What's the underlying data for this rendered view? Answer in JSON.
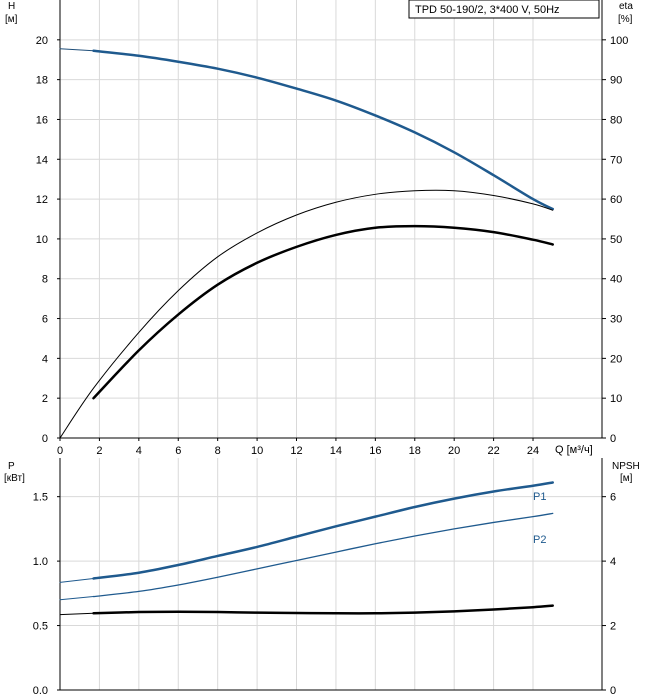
{
  "chart_data": [
    {
      "type": "line",
      "title": "TPD 50-190/2, 3*400 V, 50Hz",
      "xlabel": "Q [м³/ч]",
      "ylabel_left": "H",
      "ylabel_left_unit": "[м]",
      "ylabel_right": "eta",
      "ylabel_right_unit": "[%]",
      "xlim": [
        0,
        27.5
      ],
      "ylim_left": [
        0,
        22
      ],
      "ylim_right": [
        0,
        110
      ],
      "x_ticks": [
        0,
        2,
        4,
        6,
        8,
        10,
        12,
        14,
        16,
        18,
        20,
        22,
        24
      ],
      "y_left_ticks": [
        0,
        2,
        4,
        6,
        8,
        10,
        12,
        14,
        16,
        18,
        20
      ],
      "y_right_ticks": [
        0,
        10,
        20,
        30,
        40,
        50,
        60,
        70,
        80,
        90,
        100
      ],
      "grid": true,
      "series": [
        {
          "id": "H_ext",
          "axis": "left",
          "color": "#1f4e79",
          "width": 1,
          "x": [
            0,
            1.7
          ],
          "y": [
            19.55,
            19.45
          ]
        },
        {
          "id": "H",
          "axis": "left",
          "color": "#1f5a8e",
          "width": 2.5,
          "x": [
            1.7,
            4,
            6,
            8,
            10,
            12,
            14,
            16,
            18,
            20,
            22,
            24,
            25
          ],
          "y": [
            19.45,
            19.2,
            18.9,
            18.55,
            18.1,
            17.55,
            16.95,
            16.2,
            15.35,
            14.35,
            13.2,
            12.0,
            11.5
          ]
        },
        {
          "id": "eta_thin",
          "axis": "right",
          "color": "#000000",
          "width": 1,
          "x": [
            0,
            1.7,
            4,
            6,
            8,
            10,
            12,
            14,
            16,
            18,
            20,
            22,
            24,
            25
          ],
          "y": [
            0,
            12.5,
            26.5,
            37,
            45.5,
            51.5,
            56,
            59.2,
            61.2,
            62.1,
            62.1,
            60.9,
            58.8,
            57.2
          ]
        },
        {
          "id": "eta_thick",
          "axis": "right",
          "color": "#000000",
          "width": 2.5,
          "x": [
            1.7,
            4,
            6,
            8,
            10,
            12,
            14,
            16,
            18,
            20,
            22,
            24,
            25
          ],
          "y": [
            10,
            22,
            31,
            38.5,
            44,
            48,
            51,
            52.8,
            53.2,
            52.8,
            51.7,
            49.8,
            48.6
          ]
        }
      ]
    },
    {
      "type": "line",
      "ylabel_left": "P",
      "ylabel_left_unit": "[кВт]",
      "ylabel_right": "NPSH",
      "ylabel_right_unit": "[м]",
      "xlim": [
        0,
        27.5
      ],
      "ylim_left": [
        0,
        1.8
      ],
      "ylim_right": [
        0,
        7.2
      ],
      "y_left_ticks": [
        0.0,
        0.5,
        1.0,
        1.5
      ],
      "y_right_ticks": [
        0,
        2,
        4,
        6
      ],
      "grid": true,
      "series": [
        {
          "id": "P1_ext",
          "axis": "left",
          "color": "#1f5a8e",
          "width": 1,
          "x": [
            0,
            1.7
          ],
          "y": [
            0.835,
            0.865
          ]
        },
        {
          "id": "P1",
          "name": "P1",
          "axis": "left",
          "color": "#1f5a8e",
          "width": 2.5,
          "x": [
            1.7,
            4,
            6,
            8,
            10,
            12,
            14,
            16,
            18,
            20,
            22,
            24,
            25
          ],
          "y": [
            0.865,
            0.91,
            0.97,
            1.04,
            1.11,
            1.19,
            1.27,
            1.345,
            1.42,
            1.485,
            1.54,
            1.585,
            1.61
          ]
        },
        {
          "id": "P2_ext",
          "axis": "left",
          "color": "#1f5a8e",
          "width": 1,
          "x": [
            0,
            1.7
          ],
          "y": [
            0.7,
            0.725
          ]
        },
        {
          "id": "P2",
          "name": "P2",
          "axis": "left",
          "color": "#1f5a8e",
          "width": 1.3,
          "x": [
            1.7,
            4,
            6,
            8,
            10,
            12,
            14,
            16,
            18,
            20,
            22,
            24,
            25
          ],
          "y": [
            0.725,
            0.765,
            0.815,
            0.875,
            0.94,
            1.005,
            1.07,
            1.135,
            1.195,
            1.25,
            1.3,
            1.345,
            1.37
          ]
        },
        {
          "id": "NPSH_ext",
          "axis": "right",
          "color": "#000000",
          "width": 1,
          "x": [
            0,
            1.7
          ],
          "y": [
            2.34,
            2.38
          ]
        },
        {
          "id": "NPSH",
          "axis": "right",
          "color": "#000000",
          "width": 2.5,
          "x": [
            1.7,
            4,
            6,
            8,
            10,
            12,
            14,
            16,
            18,
            20,
            22,
            24,
            25
          ],
          "y": [
            2.38,
            2.42,
            2.43,
            2.42,
            2.4,
            2.39,
            2.38,
            2.38,
            2.4,
            2.44,
            2.5,
            2.57,
            2.62
          ]
        }
      ]
    }
  ]
}
